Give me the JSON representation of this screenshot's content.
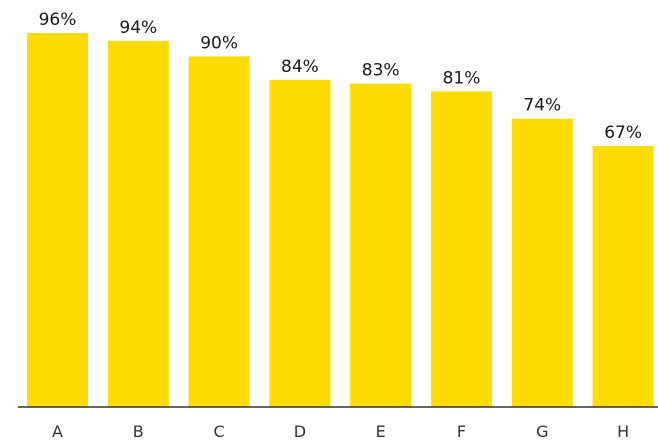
{
  "chart_data": {
    "type": "bar",
    "categories": [
      "A",
      "B",
      "C",
      "D",
      "E",
      "F",
      "G",
      "H"
    ],
    "values": [
      96,
      94,
      90,
      84,
      83,
      81,
      74,
      67
    ],
    "data_labels": [
      "96%",
      "94%",
      "90%",
      "84%",
      "83%",
      "81%",
      "74%",
      "67%"
    ],
    "title": "",
    "xlabel": "",
    "ylabel": "",
    "ylim": [
      0,
      100
    ],
    "grid": false,
    "legend": "none",
    "bar_color": "#FFDC00",
    "axis_color": "#333333"
  }
}
